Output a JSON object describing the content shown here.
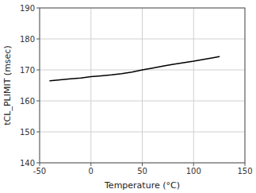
{
  "chart_data": {
    "type": "line",
    "xlabel": "Temperature (°C)",
    "ylabel": "tCL_PLIMIT (msec)",
    "x": [
      -40,
      -30,
      -20,
      -10,
      0,
      10,
      20,
      30,
      40,
      50,
      60,
      70,
      80,
      90,
      100,
      110,
      120,
      125
    ],
    "values": [
      166.5,
      166.8,
      167.1,
      167.4,
      167.8,
      168.1,
      168.4,
      168.8,
      169.3,
      170.0,
      170.6,
      171.2,
      171.8,
      172.3,
      172.8,
      173.4,
      174.0,
      174.3
    ],
    "color": "#000000",
    "xlim": [
      -50,
      150
    ],
    "ylim": [
      140,
      190
    ],
    "xticks": [
      -50,
      0,
      50,
      100,
      150
    ],
    "yticks": [
      140,
      150,
      160,
      170,
      180,
      190
    ],
    "grid": true
  }
}
